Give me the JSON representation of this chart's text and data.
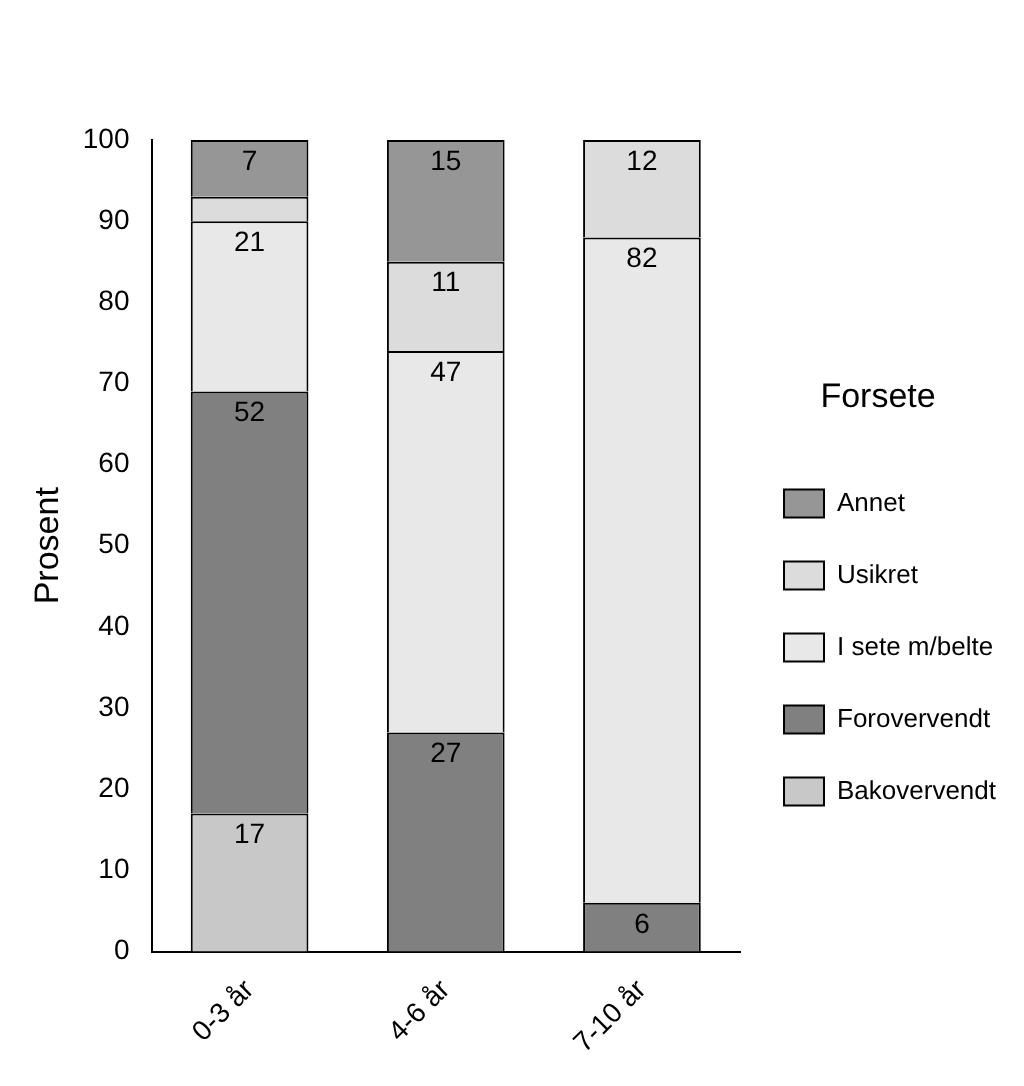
{
  "chart_data": {
    "type": "bar",
    "stacked": true,
    "ylabel": "Prosent",
    "legend_title": "Forsete",
    "legend": "right",
    "categories": [
      "0-3 år",
      "4-6 år",
      "7-10 år"
    ],
    "series": [
      {
        "name": "Bakovervendt",
        "color": "#c8c8c8",
        "values": [
          17,
          0,
          0
        ],
        "value_labels": [
          "17",
          null,
          null
        ]
      },
      {
        "name": "Forovervendt",
        "color": "#808080",
        "values": [
          52,
          27,
          6
        ],
        "value_labels": [
          "52",
          "27",
          "6"
        ]
      },
      {
        "name": "I sete m/belte",
        "color": "#e8e8e8",
        "values": [
          21,
          47,
          82
        ],
        "value_labels": [
          "21",
          "47",
          "82"
        ]
      },
      {
        "name": "Usikret",
        "color": "#dcdcdc",
        "values": [
          3,
          11,
          12
        ],
        "value_labels": [
          null,
          "11",
          "12"
        ]
      },
      {
        "name": "Annet",
        "color": "#969696",
        "values": [
          7,
          15,
          0
        ],
        "value_labels": [
          "7",
          "15",
          null
        ]
      }
    ],
    "ylim": [
      0,
      100
    ],
    "yticks": [
      0,
      10,
      20,
      30,
      40,
      50,
      60,
      70,
      80,
      90,
      100
    ],
    "grid": false
  }
}
